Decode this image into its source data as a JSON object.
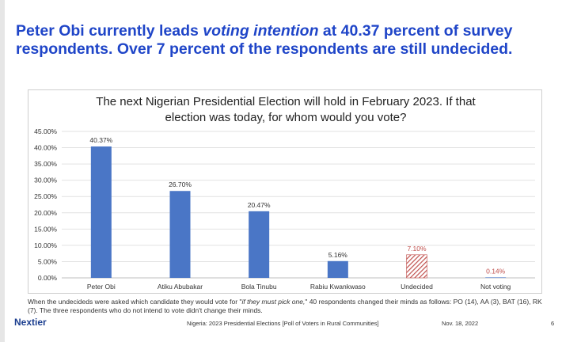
{
  "headline": {
    "part1": "Peter Obi currently leads ",
    "emph": "voting intention",
    "part2": " at 40.37 percent of survey respondents.  Over 7 percent of the respondents are still undecided."
  },
  "chart_data": {
    "type": "bar",
    "title_line1": "The next Nigerian Presidential Election will hold in February 2023.  If that",
    "title_line2": "election was today, for whom would you vote?",
    "categories": [
      "Peter Obi",
      "Atiku Abubakar",
      "Bola Tinubu",
      "Rabiu Kwankwaso",
      "Undecided",
      "Not voting"
    ],
    "values": [
      40.37,
      26.7,
      20.47,
      5.16,
      7.1,
      0.14
    ],
    "data_labels": [
      "40.37%",
      "26.70%",
      "20.47%",
      "5.16%",
      "7.10%",
      "0.14%"
    ],
    "ylim": [
      0,
      45
    ],
    "yticks": [
      "0.00%",
      "5.00%",
      "10.00%",
      "15.00%",
      "20.00%",
      "25.00%",
      "30.00%",
      "35.00%",
      "40.00%",
      "45.00%"
    ],
    "grid": true,
    "colors": {
      "bar": "#4a76c6",
      "undecided_hatch": "#c0504d",
      "undecided_label": "#c0504d",
      "not_voting_label": "#c0504d"
    },
    "bar_styles": [
      "solid",
      "solid",
      "solid",
      "solid",
      "hatched",
      "solid"
    ]
  },
  "footnote": {
    "part1": "When the undecideds were asked which candidate they would vote for \"",
    "emph": "if they must pick one,",
    "part2": "\" 40 respondents changed their minds as follows: PO (14), AA (3), BAT (16), RK (7).  The three respondents who do not intend to vote didn't change their minds."
  },
  "footer": {
    "logo": "Nextier",
    "source": "Nigeria: 2023 Presidential Elections [Poll of Voters in Rural Communities]",
    "date": "Nov. 18, 2022",
    "page": "6"
  }
}
